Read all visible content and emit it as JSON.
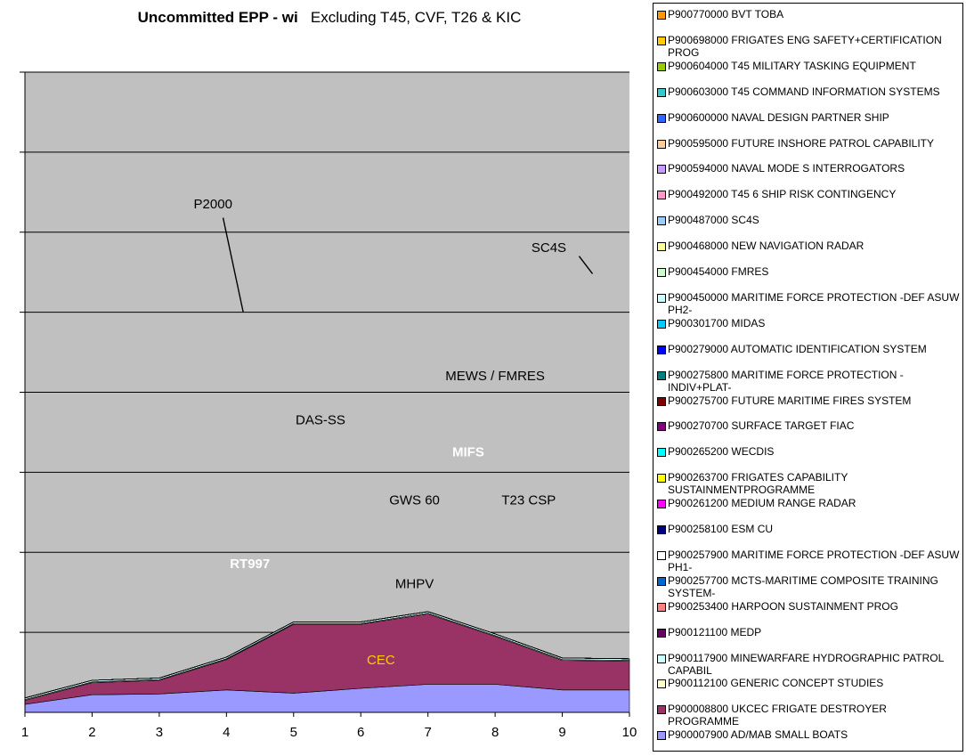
{
  "title": {
    "main": "Uncommitted EPP - wi",
    "sub": "Excluding T45, CVF, T26 & KIC"
  },
  "chart_data": {
    "type": "area",
    "stacked": true,
    "x": [
      1,
      2,
      3,
      4,
      5,
      6,
      7,
      8,
      9,
      10
    ],
    "ylim": [
      0,
      8
    ],
    "y_gridlines": [
      1,
      2,
      3,
      4,
      5,
      6,
      7,
      8
    ],
    "ytick_labels_shown": false,
    "grid": true,
    "plot_background": "#c0c0c0",
    "legend_position": "right",
    "series": [
      {
        "name": "P900007900 AD/MAB SMALL BOATS",
        "color": "#9999ff",
        "values": [
          0.1,
          0.22,
          0.23,
          0.28,
          0.24,
          0.3,
          0.35,
          0.35,
          0.28,
          0.28
        ]
      },
      {
        "name": "P900008800 UKCEC FRIGATE DESTROYER PROGRAMME",
        "color": "#993366",
        "values": [
          0.05,
          0.15,
          0.17,
          0.38,
          0.86,
          0.8,
          0.88,
          0.6,
          0.37,
          0.36
        ]
      },
      {
        "name": "P900112100 GENERIC CONCEPT STUDIES",
        "color": "#ffffcc",
        "values": [
          0.01,
          0.01,
          0.01,
          0.01,
          0.01,
          0.01,
          0.01,
          0.01,
          0.01,
          0.01
        ]
      },
      {
        "name": "P900117900 MINEWARFARE HYDROGRAPHIC PATROL CAPABIL",
        "color": "#ccffff",
        "values": [
          0.02,
          0.02,
          0.02,
          0.02,
          0.02,
          0.02,
          0.02,
          0.02,
          0.02,
          0.02
        ]
      },
      {
        "name": "P900121100 MEDP",
        "color": "#660066",
        "values": [
          0.0,
          0.0,
          0.0,
          0.0,
          0.0,
          0.0,
          0.0,
          0.0,
          0.0,
          0.0
        ]
      },
      {
        "name": "P900253400 HARPOON SUSTAINMENT PROG",
        "color": "#ff8080",
        "values": [
          0.0,
          0.0,
          0.0,
          0.0,
          0.0,
          0.0,
          0.0,
          0.0,
          0.0,
          0.0
        ]
      },
      {
        "name": "P900257700 MCTS-MARITIME COMPOSITE TRAINING SYSTEM-",
        "color": "#0066cc",
        "values": [
          0.0,
          0.0,
          0.0,
          0.0,
          0.0,
          0.0,
          0.0,
          0.0,
          0.0,
          0.0
        ]
      },
      {
        "name": "P900257900 MARITIME FORCE PROTECTION -DEF ASUW PH1-",
        "color": "#ffffff",
        "values": [
          0.0,
          0.0,
          0.0,
          0.0,
          0.0,
          0.0,
          0.0,
          0.0,
          0.0,
          0.0
        ]
      },
      {
        "name": "P900258100 ESM CU",
        "color": "#000080",
        "values": [
          0.0,
          0.0,
          0.0,
          0.0,
          0.0,
          0.0,
          0.0,
          0.0,
          0.0,
          0.0
        ]
      },
      {
        "name": "P900261200 MEDIUM RANGE RADAR",
        "color": "#ff00ff",
        "values": [
          0.0,
          0.0,
          0.0,
          0.0,
          0.0,
          0.0,
          0.0,
          0.0,
          0.0,
          0.0
        ]
      },
      {
        "name": "P900263700 FRIGATES CAPABILITY SUSTAINMENTPROGRAMME",
        "color": "#ffff00",
        "values": [
          0.0,
          0.0,
          0.0,
          0.0,
          0.0,
          0.0,
          0.0,
          0.0,
          0.0,
          0.0
        ]
      },
      {
        "name": "P900265200 WECDIS",
        "color": "#00ffff",
        "values": [
          0.0,
          0.0,
          0.0,
          0.0,
          0.0,
          0.0,
          0.0,
          0.0,
          0.0,
          0.0
        ]
      },
      {
        "name": "P900270700 SURFACE TARGET FIAC",
        "color": "#800080",
        "values": [
          0.0,
          0.0,
          0.0,
          0.0,
          0.0,
          0.0,
          0.0,
          0.0,
          0.0,
          0.0
        ]
      },
      {
        "name": "P900275700 FUTURE MARITIME FIRES SYSTEM",
        "color": "#800000",
        "values": [
          0.0,
          0.0,
          0.0,
          0.0,
          0.0,
          0.0,
          0.0,
          0.0,
          0.0,
          0.0
        ]
      },
      {
        "name": "P900275800 MARITIME FORCE PROTECTION - INDIV+PLAT-",
        "color": "#008080",
        "values": [
          0.0,
          0.0,
          0.0,
          0.0,
          0.0,
          0.0,
          0.0,
          0.0,
          0.0,
          0.0
        ]
      },
      {
        "name": "P900279000 AUTOMATIC IDENTIFICATION SYSTEM",
        "color": "#0000ff",
        "values": [
          0.0,
          0.0,
          0.0,
          0.0,
          0.0,
          0.0,
          0.0,
          0.0,
          0.0,
          0.0
        ]
      },
      {
        "name": "P900301700 MIDAS",
        "color": "#00ccff",
        "values": [
          0.0,
          0.0,
          0.0,
          0.0,
          0.0,
          0.0,
          0.0,
          0.0,
          0.0,
          0.0
        ]
      },
      {
        "name": "P900450000 MARITIME FORCE PROTECTION -DEF ASUW PH2-",
        "color": "#ccffff",
        "values": [
          0.0,
          0.0,
          0.0,
          0.0,
          0.0,
          0.0,
          0.0,
          0.0,
          0.0,
          0.0
        ]
      },
      {
        "name": "P900454000 FMRES",
        "color": "#ccffcc",
        "values": [
          0.0,
          0.0,
          0.0,
          0.0,
          0.0,
          0.0,
          0.0,
          0.0,
          0.0,
          0.0
        ]
      },
      {
        "name": "P900468000 NEW NAVIGATION RADAR",
        "color": "#ffff99",
        "values": [
          0.0,
          0.0,
          0.0,
          0.0,
          0.0,
          0.0,
          0.0,
          0.0,
          0.0,
          0.0
        ]
      },
      {
        "name": "P900487000 SC4S",
        "color": "#99ccff",
        "values": [
          0.0,
          0.0,
          0.0,
          0.0,
          0.0,
          0.0,
          0.0,
          0.0,
          0.0,
          0.0
        ]
      },
      {
        "name": "P900492000 T45 6 SHIP RISK CONTINGENCY",
        "color": "#ff99cc",
        "values": [
          0.0,
          0.0,
          0.0,
          0.0,
          0.0,
          0.0,
          0.0,
          0.0,
          0.0,
          0.0
        ]
      },
      {
        "name": "P900594000 NAVAL MODE S INTERROGATORS",
        "color": "#cc99ff",
        "values": [
          0.0,
          0.0,
          0.0,
          0.0,
          0.0,
          0.0,
          0.0,
          0.0,
          0.0,
          0.0
        ]
      },
      {
        "name": "P900595000 FUTURE INSHORE PATROL CAPABILITY",
        "color": "#ffcc99",
        "values": [
          0.0,
          0.0,
          0.0,
          0.0,
          0.0,
          0.0,
          0.0,
          0.0,
          0.0,
          0.0
        ]
      },
      {
        "name": "P900600000 NAVAL DESIGN PARTNER SHIP",
        "color": "#3366ff",
        "values": [
          0.0,
          0.0,
          0.0,
          0.0,
          0.0,
          0.0,
          0.0,
          0.0,
          0.0,
          0.0
        ]
      },
      {
        "name": "P900603000 T45 COMMAND INFORMATION SYSTEMS",
        "color": "#33cccc",
        "values": [
          0.0,
          0.0,
          0.0,
          0.0,
          0.0,
          0.0,
          0.0,
          0.0,
          0.0,
          0.0
        ]
      },
      {
        "name": "P900604000 T45 MILITARY TASKING EQUIPMENT",
        "color": "#99cc00",
        "values": [
          0.0,
          0.0,
          0.0,
          0.0,
          0.0,
          0.0,
          0.0,
          0.0,
          0.0,
          0.0
        ]
      },
      {
        "name": "P900698000 FRIGATES ENG SAFETY+CERTIFICATION PROG",
        "color": "#ffcc00",
        "values": [
          0.0,
          0.0,
          0.0,
          0.0,
          0.0,
          0.0,
          0.0,
          0.0,
          0.0,
          0.0
        ]
      },
      {
        "name": "P900770000 BVT TOBA",
        "color": "#ff9900",
        "values": [
          0.0,
          0.0,
          0.0,
          0.0,
          0.0,
          0.0,
          0.0,
          0.0,
          0.0,
          0.0
        ]
      }
    ],
    "annotations": [
      {
        "text": "P2000",
        "x": 3.8,
        "y": 6.3,
        "color": "#000000"
      },
      {
        "text": "SC4S",
        "x": 8.8,
        "y": 5.75,
        "color": "#000000"
      },
      {
        "text": "MEWS / FMRES",
        "x": 8.0,
        "y": 4.15,
        "color": "#000000"
      },
      {
        "text": "DAS-SS",
        "x": 5.4,
        "y": 3.6,
        "color": "#000000"
      },
      {
        "text": "MIFS",
        "x": 7.6,
        "y": 3.2,
        "color": "#ffffff"
      },
      {
        "text": "GWS 60",
        "x": 6.8,
        "y": 2.6,
        "color": "#000000"
      },
      {
        "text": "T23 CSP",
        "x": 8.5,
        "y": 2.6,
        "color": "#000000"
      },
      {
        "text": "RT997",
        "x": 4.35,
        "y": 1.8,
        "color": "#ffffff"
      },
      {
        "text": "MHPV",
        "x": 6.8,
        "y": 1.55,
        "color": "#000000"
      },
      {
        "text": "CEC",
        "x": 6.3,
        "y": 0.6,
        "color": "#ffcc00"
      }
    ]
  }
}
